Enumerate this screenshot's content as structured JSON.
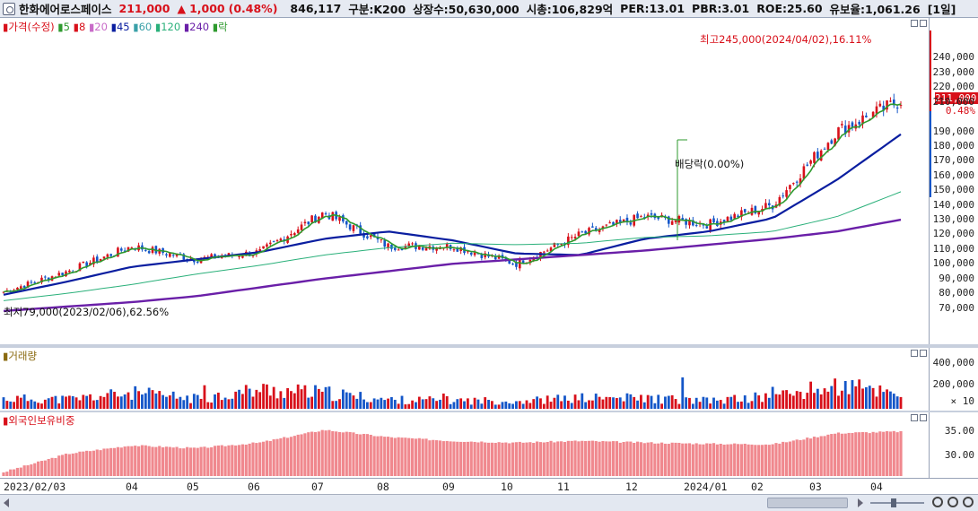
{
  "header": {
    "stock_name": "한화에어로스페이스",
    "price": "211,000",
    "change_symbol": "▲",
    "change": "1,000",
    "change_pct": "(0.48%)",
    "volume": "846,117",
    "category": "구분:K200",
    "listed_shares": "상장수:50,630,000",
    "market_cap": "시총:106,829억",
    "per": "PER:13.01",
    "pbr": "PBR:3.01",
    "roe": "ROE:25.60",
    "retention": "유보율:1,061.26",
    "period": "[1일]"
  },
  "legend": {
    "price": "가격(수정)",
    "ma": [
      "5",
      "8",
      "20",
      "45",
      "60",
      "120",
      "240"
    ],
    "ex_div": "락",
    "volume": "거래량",
    "foreign": "외국인보유비중"
  },
  "annotations": {
    "high": "최고245,000(2024/04/02),16.11%",
    "low": "최저79,000(2023/02/06),62.56%",
    "dividend": "배당락(0.00%)"
  },
  "price_axis": {
    "current": "211,000",
    "change": "0.48%",
    "ticks": [
      "240,000",
      "230,000",
      "220,000",
      "210,000",
      "190,000",
      "180,000",
      "170,000",
      "160,000",
      "150,000",
      "140,000",
      "130,000",
      "120,000",
      "110,000",
      "100,000",
      "90,000",
      "80,000",
      "70,000"
    ]
  },
  "volume_axis": {
    "ticks": [
      "400,000",
      "200,000"
    ],
    "unit": "× 10"
  },
  "foreign_axis": {
    "ticks": [
      "35.00",
      "30.00"
    ]
  },
  "x_axis": [
    "2023/02/03",
    "04",
    "05",
    "06",
    "07",
    "08",
    "09",
    "10",
    "11",
    "12",
    "2024/01",
    "02",
    "03",
    "04"
  ],
  "colors": {
    "up": "#d8101a",
    "down": "#1456c8",
    "ma5": "#d8101a",
    "ma8": "#2e9a2e",
    "ma20": "#c86bc8",
    "ma45": "#0a1ea0",
    "ma60": "#3aa0a8",
    "ma120": "#2ab07a",
    "ma240": "#6a1fa8",
    "foreign": "#f0888e"
  },
  "chart_data": [
    {
      "type": "line",
      "title": "가격(수정)",
      "x": [
        "2023-02",
        "2023-03",
        "2023-04",
        "2023-05",
        "2023-06",
        "2023-07",
        "2023-08",
        "2023-09",
        "2023-10",
        "2023-11",
        "2023-12",
        "2024-01",
        "2024-02",
        "2024-03",
        "2024-04"
      ],
      "series": [
        {
          "name": "가격(수정)",
          "values": [
            81000,
            95000,
            112000,
            103000,
            108000,
            135000,
            112000,
            112000,
            100000,
            120000,
            132000,
            127000,
            140000,
            190000,
            211000
          ]
        },
        {
          "name": "45",
          "values": [
            79000,
            88000,
            98000,
            103000,
            108000,
            117000,
            122000,
            116000,
            107000,
            106000,
            117000,
            122000,
            131000,
            157000,
            188000
          ]
        },
        {
          "name": "120",
          "values": [
            75000,
            80000,
            86000,
            93000,
            99000,
            106000,
            111000,
            114000,
            113000,
            114000,
            118000,
            119000,
            122000,
            132000,
            149000
          ]
        },
        {
          "name": "240",
          "values": [
            68000,
            71000,
            74000,
            78000,
            84000,
            90000,
            95000,
            100000,
            103000,
            106000,
            109000,
            113000,
            117000,
            122000,
            130000
          ]
        }
      ],
      "ylim": [
        60000,
        250000
      ]
    },
    {
      "type": "bar",
      "title": "거래량",
      "x": [
        "2023-02",
        "2023-03",
        "2023-04",
        "2023-05",
        "2023-06",
        "2023-07",
        "2023-08",
        "2023-09",
        "2023-10",
        "2023-11",
        "2023-12",
        "2024-01",
        "2024-02",
        "2024-03",
        "2024-04"
      ],
      "values": [
        90000,
        85000,
        140000,
        90000,
        170000,
        140000,
        80000,
        75000,
        70000,
        95000,
        95000,
        70000,
        110000,
        200000,
        150000
      ],
      "ylim": [
        0,
        450000
      ]
    },
    {
      "type": "area",
      "title": "외국인보유비중",
      "x": [
        "2023-02",
        "2023-03",
        "2023-04",
        "2023-05",
        "2023-06",
        "2023-07",
        "2023-08",
        "2023-09",
        "2023-10",
        "2023-11",
        "2023-12",
        "2024-01",
        "2024-02",
        "2024-03",
        "2024-04"
      ],
      "values": [
        28.2,
        31.5,
        33.0,
        32.5,
        33.5,
        35.8,
        34.5,
        33.8,
        33.5,
        33.8,
        33.5,
        33.3,
        33.2,
        35.2,
        35.5
      ],
      "ylim": [
        27.5,
        37
      ]
    }
  ]
}
